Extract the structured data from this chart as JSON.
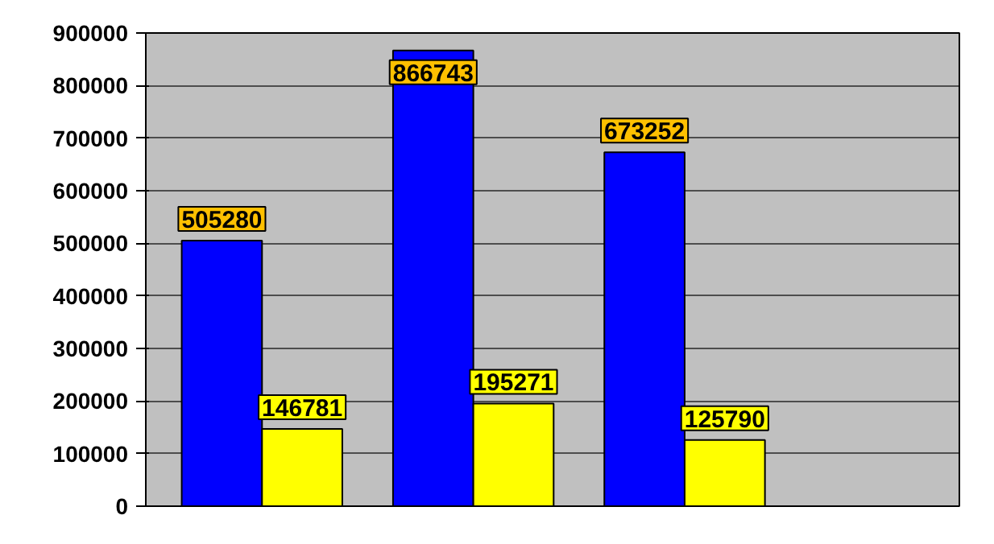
{
  "chart_data": {
    "type": "bar",
    "categories": [
      null,
      null,
      null
    ],
    "series": [
      {
        "color": "#0000ff",
        "values": [
          505280,
          866743,
          673252
        ]
      },
      {
        "color": "#ffff00",
        "values": [
          146781,
          195271,
          125790
        ]
      }
    ],
    "ylim": [
      0,
      900000
    ],
    "yticks": [
      0,
      100000,
      200000,
      300000,
      400000,
      500000,
      600000,
      700000,
      800000,
      900000
    ],
    "grid": "y",
    "data_labels": true
  }
}
